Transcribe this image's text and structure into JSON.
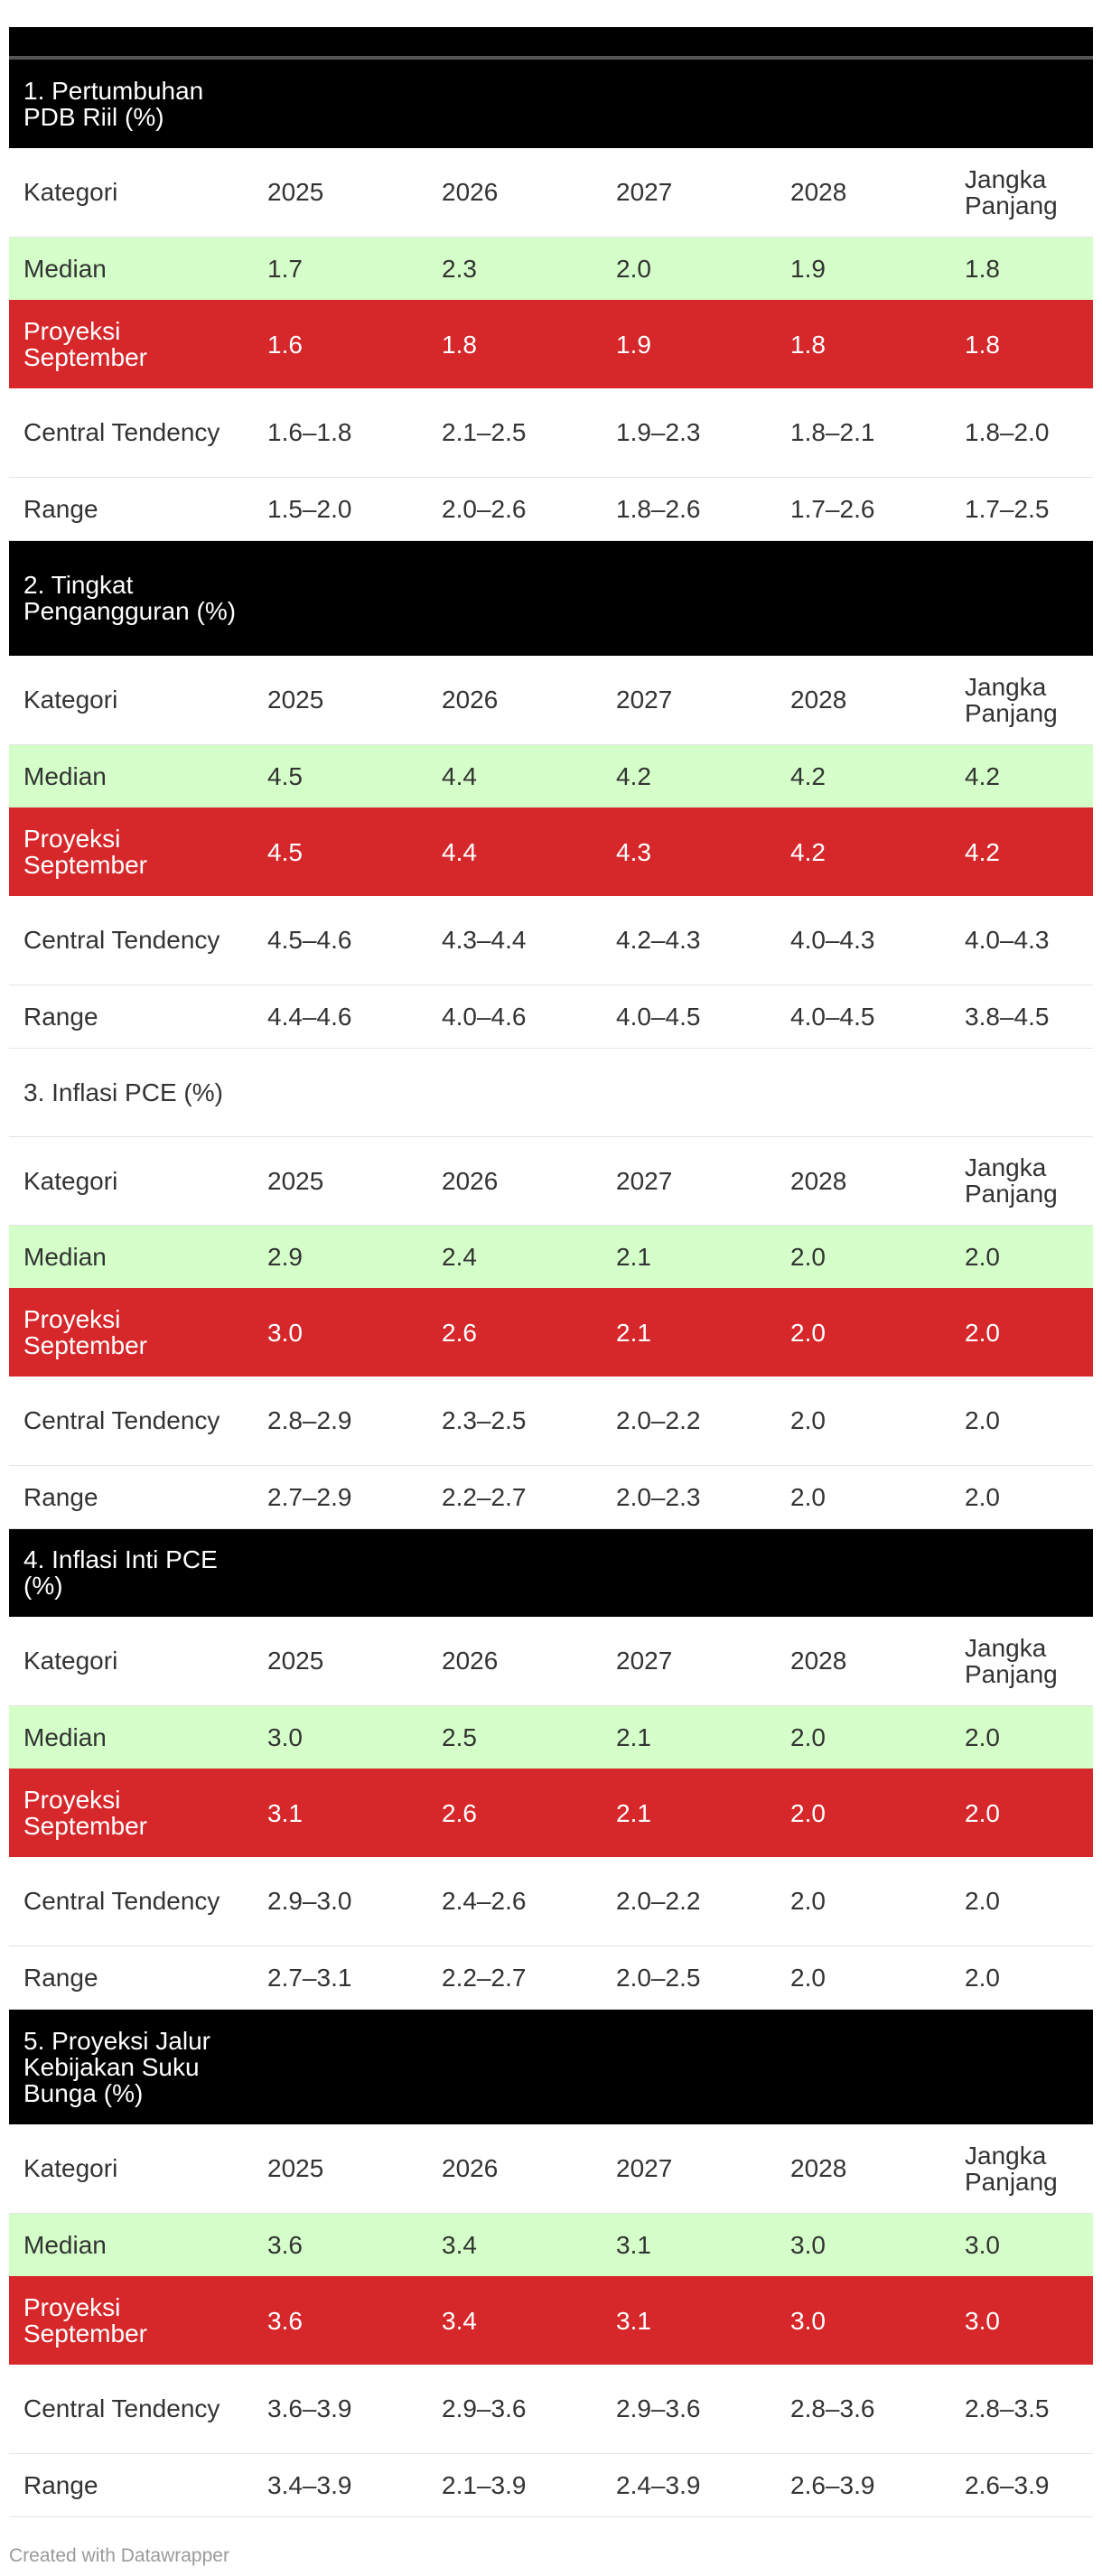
{
  "chart_data": {
    "type": "table",
    "title": "",
    "columns": [
      "Kategori",
      "2025",
      "2026",
      "2027",
      "2028",
      "Jangka Panjang"
    ],
    "sections": [
      {
        "title": "1. Pertumbuhan PDB Riil (%)",
        "rows": [
          {
            "label": "Median",
            "values": [
              "1.7",
              "2.3",
              "2.0",
              "1.9",
              "1.8"
            ]
          },
          {
            "label": "Proyeksi September",
            "values": [
              "1.6",
              "1.8",
              "1.9",
              "1.8",
              "1.8"
            ]
          },
          {
            "label": "Central Tendency",
            "values": [
              "1.6–1.8",
              "2.1–2.5",
              "1.9–2.3",
              "1.8–2.1",
              "1.8–2.0"
            ]
          },
          {
            "label": "Range",
            "values": [
              "1.5–2.0",
              "2.0–2.6",
              "1.8–2.6",
              "1.7–2.6",
              "1.7–2.5"
            ]
          }
        ]
      },
      {
        "title": "2. Tingkat Pengangguran (%)",
        "rows": [
          {
            "label": "Median",
            "values": [
              "4.5",
              "4.4",
              "4.2",
              "4.2",
              "4.2"
            ]
          },
          {
            "label": "Proyeksi September",
            "values": [
              "4.5",
              "4.4",
              "4.3",
              "4.2",
              "4.2"
            ]
          },
          {
            "label": "Central Tendency",
            "values": [
              "4.5–4.6",
              "4.3–4.4",
              "4.2–4.3",
              "4.0–4.3",
              "4.0–4.3"
            ]
          },
          {
            "label": "Range",
            "values": [
              "4.4–4.6",
              "4.0–4.6",
              "4.0–4.5",
              "4.0–4.5",
              "3.8–4.5"
            ]
          }
        ]
      },
      {
        "title": "3. Inflasi PCE (%)",
        "plain": true,
        "rows": [
          {
            "label": "Median",
            "values": [
              "2.9",
              "2.4",
              "2.1",
              "2.0",
              "2.0"
            ]
          },
          {
            "label": "Proyeksi September",
            "values": [
              "3.0",
              "2.6",
              "2.1",
              "2.0",
              "2.0"
            ]
          },
          {
            "label": "Central Tendency",
            "values": [
              "2.8–2.9",
              "2.3–2.5",
              "2.0–2.2",
              "2.0",
              "2.0"
            ]
          },
          {
            "label": "Range",
            "values": [
              "2.7–2.9",
              "2.2–2.7",
              "2.0–2.3",
              "2.0",
              "2.0"
            ]
          }
        ]
      },
      {
        "title": "4. Inflasi Inti PCE (%)",
        "rows": [
          {
            "label": "Median",
            "values": [
              "3.0",
              "2.5",
              "2.1",
              "2.0",
              "2.0"
            ]
          },
          {
            "label": "Proyeksi September",
            "values": [
              "3.1",
              "2.6",
              "2.1",
              "2.0",
              "2.0"
            ]
          },
          {
            "label": "Central Tendency",
            "values": [
              "2.9–3.0",
              "2.4–2.6",
              "2.0–2.2",
              "2.0",
              "2.0"
            ]
          },
          {
            "label": "Range",
            "values": [
              "2.7–3.1",
              "2.2–2.7",
              "2.0–2.5",
              "2.0",
              "2.0"
            ]
          }
        ]
      },
      {
        "title": "5. Proyeksi Jalur Kebijakan Suku Bunga (%)",
        "rows": [
          {
            "label": "Median",
            "values": [
              "3.6",
              "3.4",
              "3.1",
              "3.0",
              "3.0"
            ]
          },
          {
            "label": "Proyeksi September",
            "values": [
              "3.6",
              "3.4",
              "3.1",
              "3.0",
              "3.0"
            ]
          },
          {
            "label": "Central Tendency",
            "values": [
              "3.6–3.9",
              "2.9–3.6",
              "2.9–3.6",
              "2.8–3.6",
              "2.8–3.5"
            ]
          },
          {
            "label": "Range",
            "values": [
              "3.4–3.9",
              "2.1–3.9",
              "2.4–3.9",
              "2.6–3.9",
              "2.6–3.9"
            ]
          }
        ]
      }
    ]
  },
  "colors": {
    "median_bg": "#d4ffc8",
    "september_bg": "#d6272b",
    "section_bg": "#000000"
  },
  "footer": {
    "credit": "Created with Datawrapper"
  }
}
